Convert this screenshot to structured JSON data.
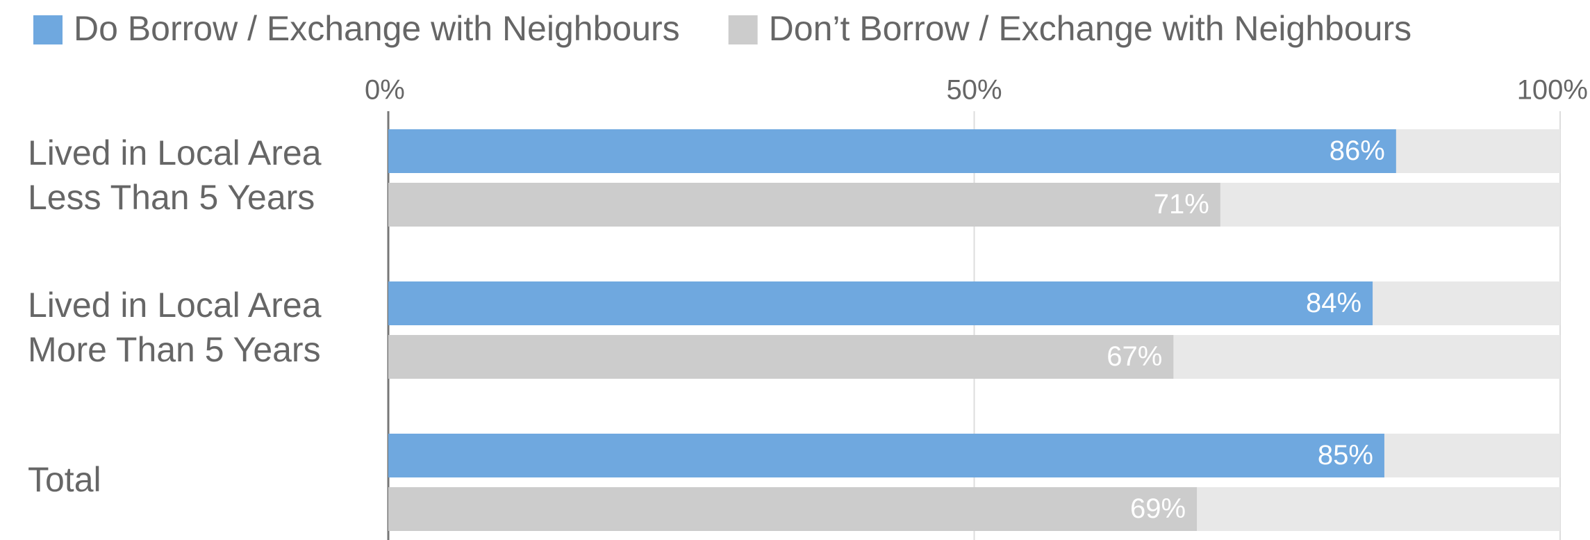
{
  "chart_data": {
    "type": "hbar",
    "categories": [
      [
        "Lived in Local Area",
        "Less Than 5 Years"
      ],
      [
        "Lived in Local Area",
        "More Than 5 Years"
      ],
      [
        "Total"
      ]
    ],
    "series": [
      {
        "name": "Do Borrow / Exchange with Neighbours",
        "color": "#6fa8df",
        "values": [
          86,
          84,
          85
        ],
        "value_labels": [
          "86%",
          "84%",
          "85%"
        ]
      },
      {
        "name": "Don’t Borrow / Exchange with Neighbours",
        "color": "#cccccc",
        "values": [
          71,
          67,
          69
        ],
        "value_labels": [
          "71%",
          "67%",
          "69%"
        ]
      }
    ],
    "xlim": [
      0,
      100
    ],
    "xticks": [
      {
        "value": 0,
        "label": "0%"
      },
      {
        "value": 50,
        "label": "50%"
      },
      {
        "value": 100,
        "label": "100%"
      }
    ],
    "grid": true,
    "legend": "top"
  }
}
